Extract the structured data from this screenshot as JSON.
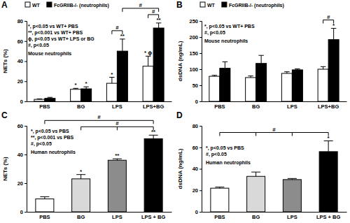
{
  "chart_data": [
    {
      "type": "bar",
      "title": "A",
      "y_label": "NETs (%)",
      "categories": [
        "PBS",
        "BG",
        "LPS",
        "LPS+BG"
      ],
      "series": [
        {
          "name": "WT",
          "color": "#ffffff",
          "values": [
            2,
            12,
            18,
            35
          ],
          "errors": [
            0.5,
            1,
            6,
            10
          ],
          "significance": [
            null,
            "*",
            "*",
            "* ϕ"
          ]
        },
        {
          "name": "FcGRIIB-/- (neutrophils)",
          "color": "#000000",
          "values": [
            3,
            12.5,
            50,
            73
          ],
          "errors": [
            1,
            2,
            12,
            5
          ],
          "significance": [
            null,
            "*",
            "**",
            "**"
          ]
        }
      ],
      "ylim": [
        0,
        80
      ],
      "yticks": [
        0,
        20,
        40,
        60,
        80
      ],
      "legend": "top",
      "annotations": [
        "*, p<0.05 vs WT+ PBS",
        "**, p<0.001 vs WT+ PBS",
        "ϕ, p<0.05 vs WT+ LPS or BG",
        "#, p<0.05",
        "Mouse neutrophils"
      ],
      "brackets": [
        {
          "label": "#",
          "from": [
            [
              "LPS",
              "WT"
            ]
          ],
          "to": [
            [
              "LPS",
              "FcGRIIB-/- (neutrophils)"
            ]
          ]
        },
        {
          "label": "#",
          "from": [
            [
              "LPS+BG",
              "WT"
            ]
          ],
          "to": [
            [
              "LPS+BG",
              "FcGRIIB-/- (neutrophils)"
            ]
          ]
        },
        {
          "label": "#",
          "from": [
            [
              "LPS",
              "FcGRIIB-/- (neutrophils)"
            ]
          ],
          "to": [
            [
              "LPS+BG",
              "FcGRIIB-/- (neutrophils)"
            ]
          ]
        }
      ]
    },
    {
      "type": "bar",
      "title": "B",
      "y_label": "dsDNA (ng/mL)",
      "categories": [
        "PBS",
        "BG",
        "LPS",
        "LPS+BG"
      ],
      "series": [
        {
          "name": "WT",
          "color": "#ffffff",
          "values": [
            78,
            74,
            87,
            100
          ],
          "errors": [
            3,
            5,
            5,
            8
          ],
          "significance": [
            null,
            null,
            null,
            null
          ]
        },
        {
          "name": "FcGRIIB-/- (neutrophils)",
          "color": "#000000",
          "values": [
            103,
            118,
            98,
            192
          ],
          "errors": [
            20,
            25,
            3,
            35
          ],
          "significance": [
            null,
            null,
            null,
            "*"
          ]
        }
      ],
      "ylim": [
        0,
        250
      ],
      "yticks": [
        0,
        50,
        100,
        150,
        200,
        250
      ],
      "legend": "top",
      "annotations": [
        "*, p<0.05 vs WT+ PBS",
        "#, p<0.05",
        "Mouse neutrophils"
      ],
      "brackets": [
        {
          "label": "#",
          "from": [
            [
              "LPS+BG",
              "WT"
            ]
          ],
          "to": [
            [
              "LPS+BG",
              "FcGRIIB-/- (neutrophils)"
            ]
          ]
        }
      ]
    },
    {
      "type": "bar",
      "title": "C",
      "y_label": "NETs (%)",
      "categories": [
        "PBS",
        "BG",
        "LPS",
        "LPS + BG"
      ],
      "series": [
        {
          "colors": [
            "#ffffff",
            "#d9d9d9",
            "#8c8c8c",
            "#000000"
          ],
          "values": [
            9,
            23,
            36,
            51
          ],
          "errors": [
            1.5,
            3,
            1,
            2.5
          ],
          "significance": [
            null,
            "*",
            "**",
            "**"
          ]
        }
      ],
      "ylim": [
        0,
        60
      ],
      "yticks": [
        0,
        20,
        40,
        60
      ],
      "annotations": [
        "*, p<0.05 vs PBS",
        "**, p<0.001 vs PBS",
        "#, p<0.05",
        "Human neutrophils"
      ],
      "brackets": [
        {
          "label": "#",
          "from": [
            [
              "BG"
            ],
            [
              "LPS"
            ]
          ],
          "to": [
            [
              "LPS + BG"
            ]
          ]
        },
        {
          "label": "#",
          "from": [
            [
              "PBS"
            ]
          ],
          "to": [
            [
              "LPS + BG"
            ]
          ]
        }
      ]
    },
    {
      "type": "bar",
      "title": "D",
      "y_label": "dsDNA (ng/mL)",
      "categories": [
        "PBS",
        "BG",
        "LPS",
        "LPS + BG"
      ],
      "series": [
        {
          "colors": [
            "#ffffff",
            "#d9d9d9",
            "#8c8c8c",
            "#000000"
          ],
          "values": [
            22,
            33,
            30,
            56
          ],
          "errors": [
            1,
            4,
            1,
            10
          ],
          "significance": [
            null,
            null,
            null,
            "*"
          ]
        }
      ],
      "ylim": [
        0,
        80
      ],
      "yticks": [
        0,
        20,
        40,
        60,
        80
      ],
      "annotations": [
        "*, p<0.05 vs PBS",
        "#, p<0.05",
        "Human neutrophils"
      ],
      "brackets": [
        {
          "label": "#",
          "from": [
            [
              "PBS"
            ],
            [
              "BG"
            ],
            [
              "LPS"
            ]
          ],
          "to": [
            [
              "LPS + BG"
            ]
          ]
        }
      ]
    }
  ]
}
